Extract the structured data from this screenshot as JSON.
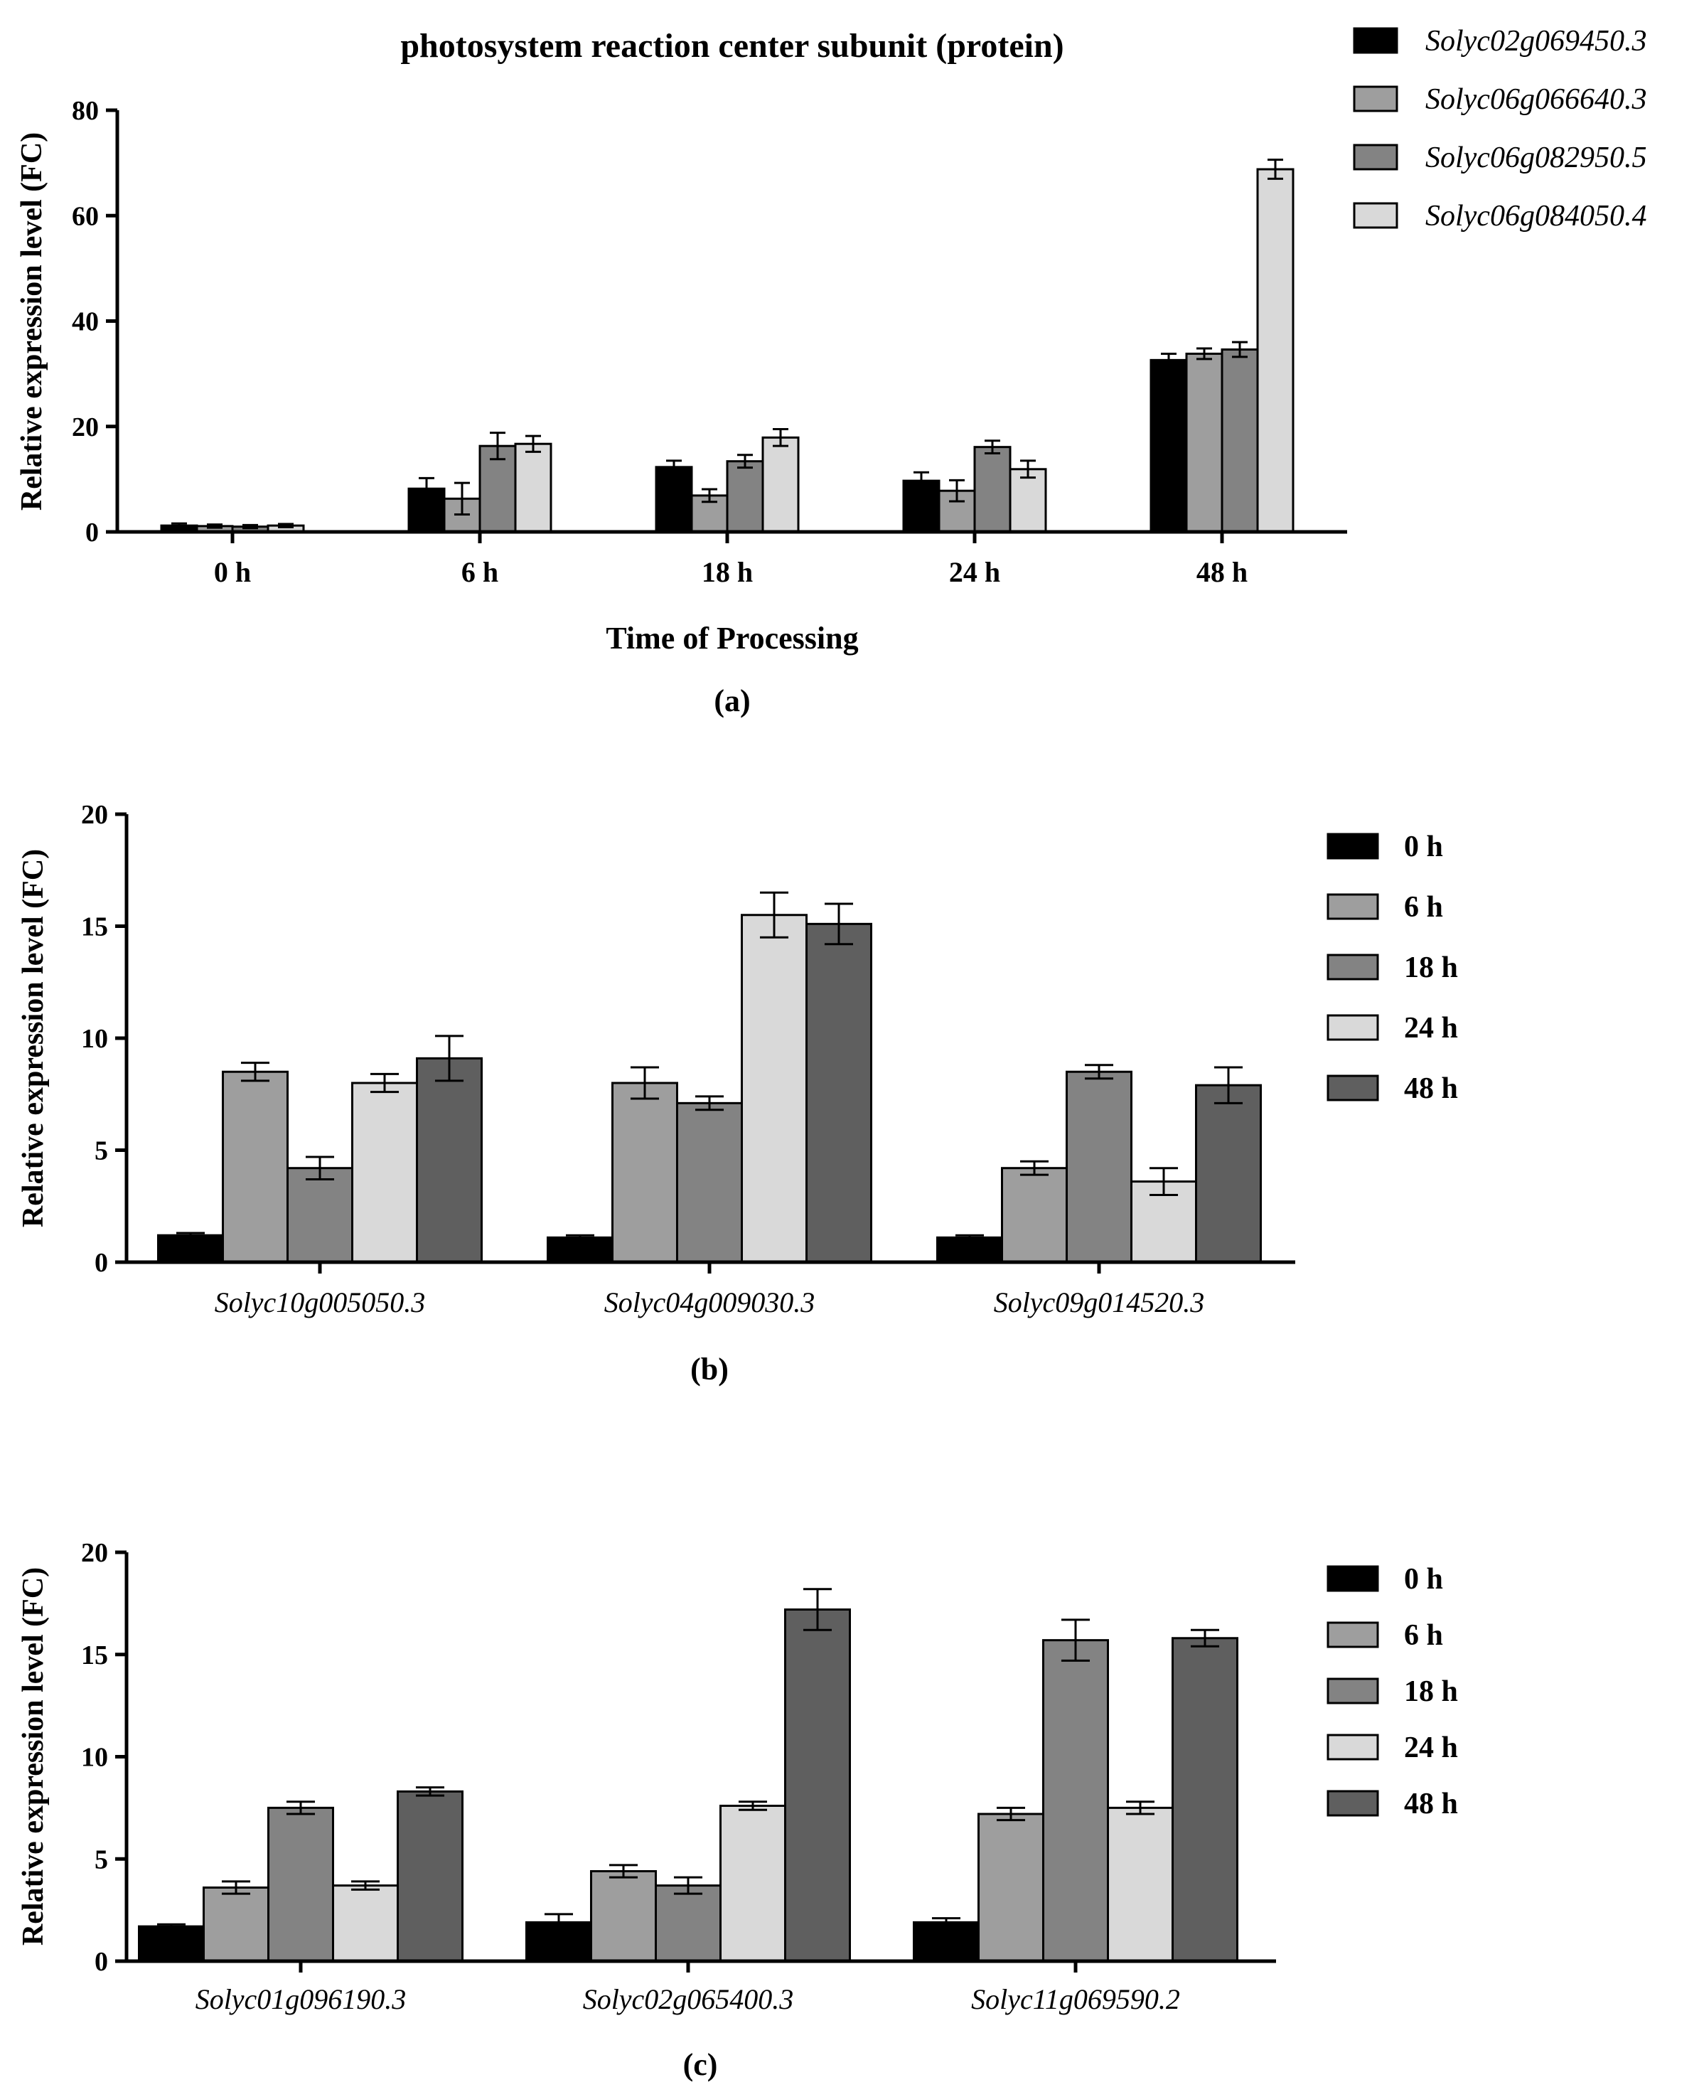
{
  "colors": {
    "black": "#000000",
    "dark": "#5f5f5f",
    "mid": "#9e9e9e",
    "gray": "#838383",
    "light": "#d9d9d9"
  },
  "chart_data": [
    {
      "type": "bar",
      "panel_label": "(a)",
      "title": "photosystem reaction center subunit (protein)",
      "xlabel": "Time of Processing",
      "ylabel": "Relative expression level (FC)",
      "ylim": [
        0,
        80
      ],
      "yticks": [
        0,
        20,
        40,
        60,
        80
      ],
      "categories": [
        "0 h",
        "6 h",
        "18 h",
        "24 h",
        "48 h"
      ],
      "legend_position": "top-right",
      "series_names_italic": true,
      "series": [
        {
          "name": "Solyc02g069450.3",
          "color": "#000000",
          "values": [
            1.2,
            8.2,
            12.3,
            9.7,
            32.6
          ],
          "errors": [
            0.4,
            2.0,
            1.2,
            1.6,
            1.2
          ]
        },
        {
          "name": "Solyc06g066640.3",
          "color": "#9e9e9e",
          "values": [
            1.1,
            6.3,
            6.9,
            7.8,
            33.8
          ],
          "errors": [
            0.3,
            3.0,
            1.2,
            2.0,
            1.0
          ]
        },
        {
          "name": "Solyc06g082950.5",
          "color": "#838383",
          "values": [
            1.0,
            16.3,
            13.4,
            16.1,
            34.6
          ],
          "errors": [
            0.3,
            2.5,
            1.2,
            1.2,
            1.4
          ]
        },
        {
          "name": "Solyc06g084050.4",
          "color": "#d9d9d9",
          "values": [
            1.2,
            16.7,
            17.9,
            11.9,
            68.8
          ],
          "errors": [
            0.3,
            1.5,
            1.6,
            1.6,
            1.8
          ]
        }
      ]
    },
    {
      "type": "bar",
      "panel_label": "(b)",
      "title": "",
      "xlabel": "",
      "ylabel": "Relative expression level (FC)",
      "ylim": [
        0,
        20
      ],
      "yticks": [
        0,
        5,
        10,
        15,
        20
      ],
      "categories": [
        "Solyc10g005050.3",
        "Solyc04g009030.3",
        "Solyc09g014520.3"
      ],
      "categories_italic": true,
      "legend_position": "right",
      "series": [
        {
          "name": "0 h",
          "color": "#000000",
          "values": [
            1.2,
            1.1,
            1.1
          ],
          "errors": [
            0.1,
            0.1,
            0.1
          ]
        },
        {
          "name": "6 h",
          "color": "#9e9e9e",
          "values": [
            8.5,
            8.0,
            4.2
          ],
          "errors": [
            0.4,
            0.7,
            0.3
          ]
        },
        {
          "name": "18 h",
          "color": "#838383",
          "values": [
            4.2,
            7.1,
            8.5
          ],
          "errors": [
            0.5,
            0.3,
            0.3
          ]
        },
        {
          "name": "24 h",
          "color": "#d9d9d9",
          "values": [
            8.0,
            15.5,
            3.6
          ],
          "errors": [
            0.4,
            1.0,
            0.6
          ]
        },
        {
          "name": "48 h",
          "color": "#5f5f5f",
          "values": [
            9.1,
            15.1,
            7.9
          ],
          "errors": [
            1.0,
            0.9,
            0.8
          ]
        }
      ]
    },
    {
      "type": "bar",
      "panel_label": "(c)",
      "title": "",
      "xlabel": "",
      "ylabel": "Relative expression level (FC)",
      "ylim": [
        0,
        20
      ],
      "yticks": [
        0,
        5,
        10,
        15,
        20
      ],
      "categories": [
        "Solyc01g096190.3",
        "Solyc02g065400.3",
        "Solyc11g069590.2"
      ],
      "categories_italic": true,
      "legend_position": "right",
      "series": [
        {
          "name": "0 h",
          "color": "#000000",
          "values": [
            1.7,
            1.9,
            1.9
          ],
          "errors": [
            0.1,
            0.4,
            0.2
          ]
        },
        {
          "name": "6 h",
          "color": "#9e9e9e",
          "values": [
            3.6,
            4.4,
            7.2
          ],
          "errors": [
            0.3,
            0.3,
            0.3
          ]
        },
        {
          "name": "18 h",
          "color": "#838383",
          "values": [
            7.5,
            3.7,
            15.7
          ],
          "errors": [
            0.3,
            0.4,
            1.0
          ]
        },
        {
          "name": "24 h",
          "color": "#d9d9d9",
          "values": [
            3.7,
            7.6,
            7.5
          ],
          "errors": [
            0.2,
            0.2,
            0.3
          ]
        },
        {
          "name": "48 h",
          "color": "#5f5f5f",
          "values": [
            8.3,
            17.2,
            15.8
          ],
          "errors": [
            0.2,
            1.0,
            0.4
          ]
        }
      ]
    }
  ]
}
